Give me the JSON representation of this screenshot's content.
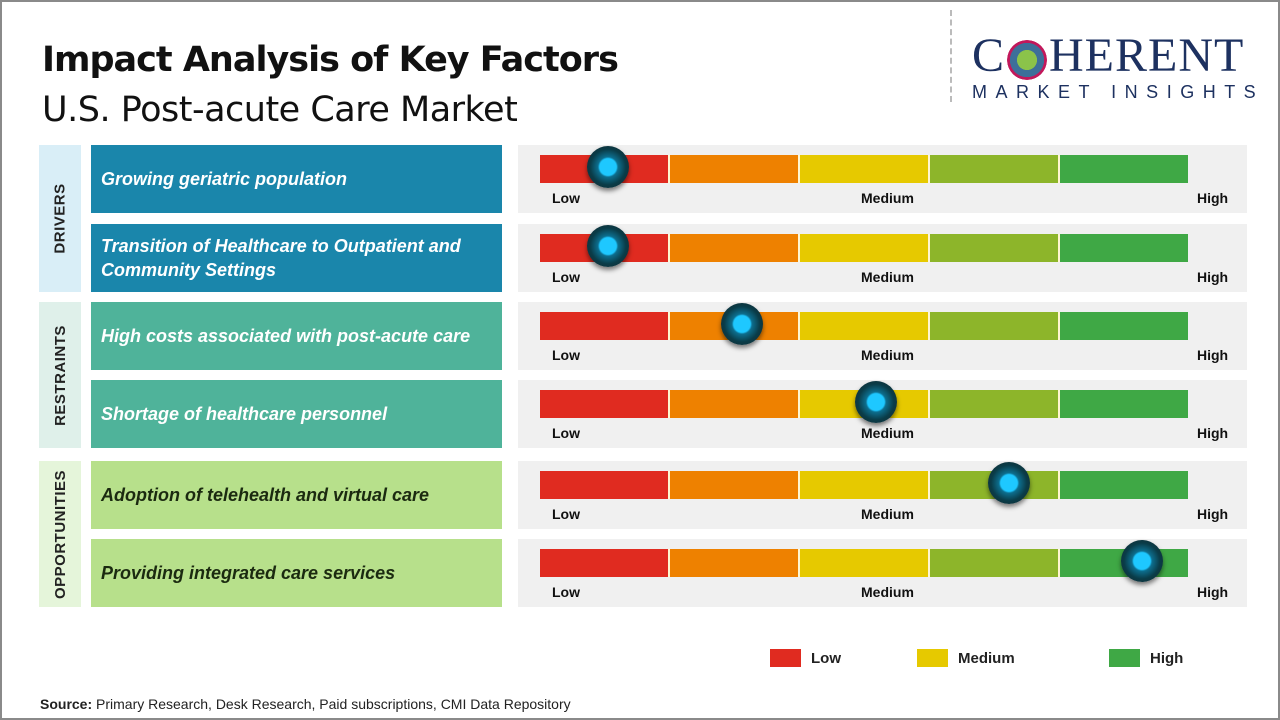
{
  "title": "Impact Analysis of Key Factors",
  "subtitle": "U.S. Post-acute Care Market",
  "logo": {
    "brand": "COHERENT",
    "tagline": "MARKET INSIGHTS"
  },
  "scale_colors": [
    "#e02b20",
    "#ee8100",
    "#e6c900",
    "#8db52a",
    "#3fa845"
  ],
  "scale_labels": {
    "low": "Low",
    "medium": "Medium",
    "high": "High"
  },
  "categories": [
    {
      "label": "DRIVERS",
      "bg": "#d9eef7",
      "factor_color": "#1a86ab"
    },
    {
      "label": "RESTRAINTS",
      "bg": "#dff0ea",
      "factor_color": "#4fb39a"
    },
    {
      "label": "OPPORTUNITIES",
      "bg": "#e5f5da",
      "factor_color": "#b7e08b"
    }
  ],
  "factors": [
    {
      "category": 0,
      "text": "Growing geriatric population",
      "impact": 0.105
    },
    {
      "category": 0,
      "text": "Transition of Healthcare to Outpatient and Community Settings",
      "impact": 0.105
    },
    {
      "category": 1,
      "text": "High costs associated with post-acute care",
      "impact": 0.312
    },
    {
      "category": 1,
      "text": "Shortage of healthcare personnel",
      "impact": 0.519
    },
    {
      "category": 2,
      "text": "Adoption of telehealth and virtual care",
      "impact": 0.724
    },
    {
      "category": 2,
      "text": "Providing integrated care services",
      "impact": 0.929
    }
  ],
  "legend": [
    {
      "label": "Low",
      "color": "#e02b20"
    },
    {
      "label": "Medium",
      "color": "#e6c900"
    },
    {
      "label": "High",
      "color": "#3fa845"
    }
  ],
  "source": {
    "label": "Source:",
    "text": " Primary Research, Desk Research, Paid subscriptions, CMI Data Repository"
  }
}
